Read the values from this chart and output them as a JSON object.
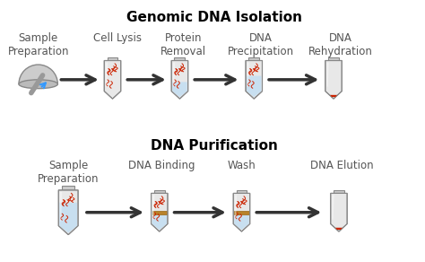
{
  "title1": "Genomic DNA Isolation",
  "title2": "DNA Purification",
  "row1_labels": [
    "Sample\nPreparation",
    "Cell Lysis",
    "Protein\nRemoval",
    "DNA\nPrecipitation",
    "DNA\nRehydration"
  ],
  "row2_labels": [
    "Sample\nPreparation",
    "DNA Binding",
    "Wash",
    "DNA Elution"
  ],
  "bg_color": "#ffffff",
  "title_fontsize": 11,
  "label_fontsize": 8.5,
  "tube_color": "#e8e8e8",
  "tube_edge": "#888888",
  "liquid_blue": "#c8dff0",
  "dna_color": "#cc2200",
  "arrow_color": "#333333",
  "label_color": "#555555"
}
